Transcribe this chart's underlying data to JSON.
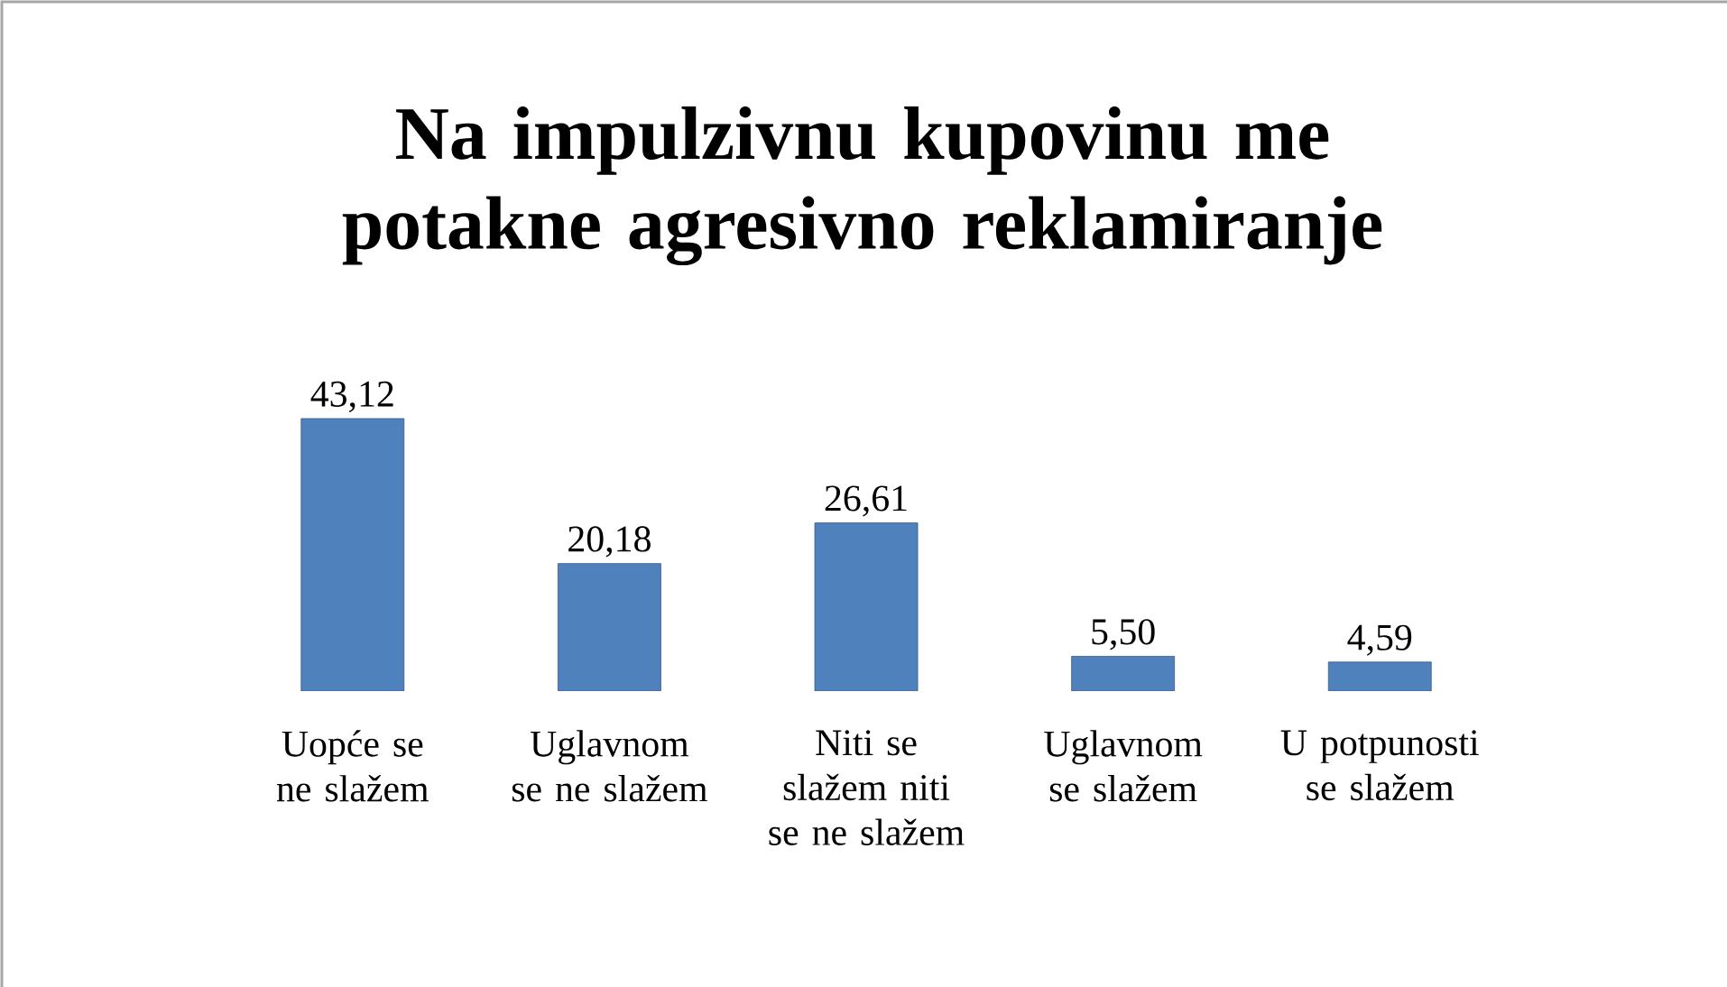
{
  "chart_data": {
    "type": "bar",
    "title": "Na impulzivnu kupovinu me potakne agresivno reklamiranje",
    "categories": [
      "Uopće se ne slažem",
      "Uglavnom se ne slažem",
      "Niti se slažem niti se ne slažem",
      "Uglavnom se slažem",
      "U potpunosti se slažem"
    ],
    "values": [
      43.12,
      20.18,
      26.61,
      5.5,
      4.59
    ],
    "value_labels": [
      "43,12",
      "20,18",
      "26,61",
      "5,50",
      "4,59"
    ],
    "color": "#4f81bd"
  }
}
